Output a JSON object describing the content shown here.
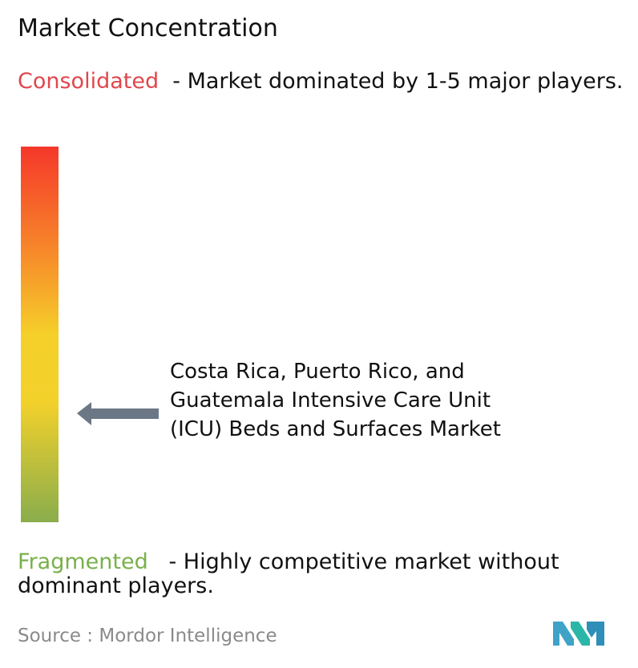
{
  "header": {
    "title": "Market Concentration"
  },
  "consolidated": {
    "label": "Consolidated",
    "description": "- Market dominated by 1-5 major players."
  },
  "marker": {
    "label": "Costa Rica, Puerto Rico, and Guatemala Intensive Care Unit (ICU) Beds and Surfaces Market"
  },
  "fragmented": {
    "label": "Fragmented",
    "description": "- Highly competitive market without dominant players."
  },
  "footer": {
    "source_label": "Source :",
    "source": "Mordor Intelligence"
  }
}
